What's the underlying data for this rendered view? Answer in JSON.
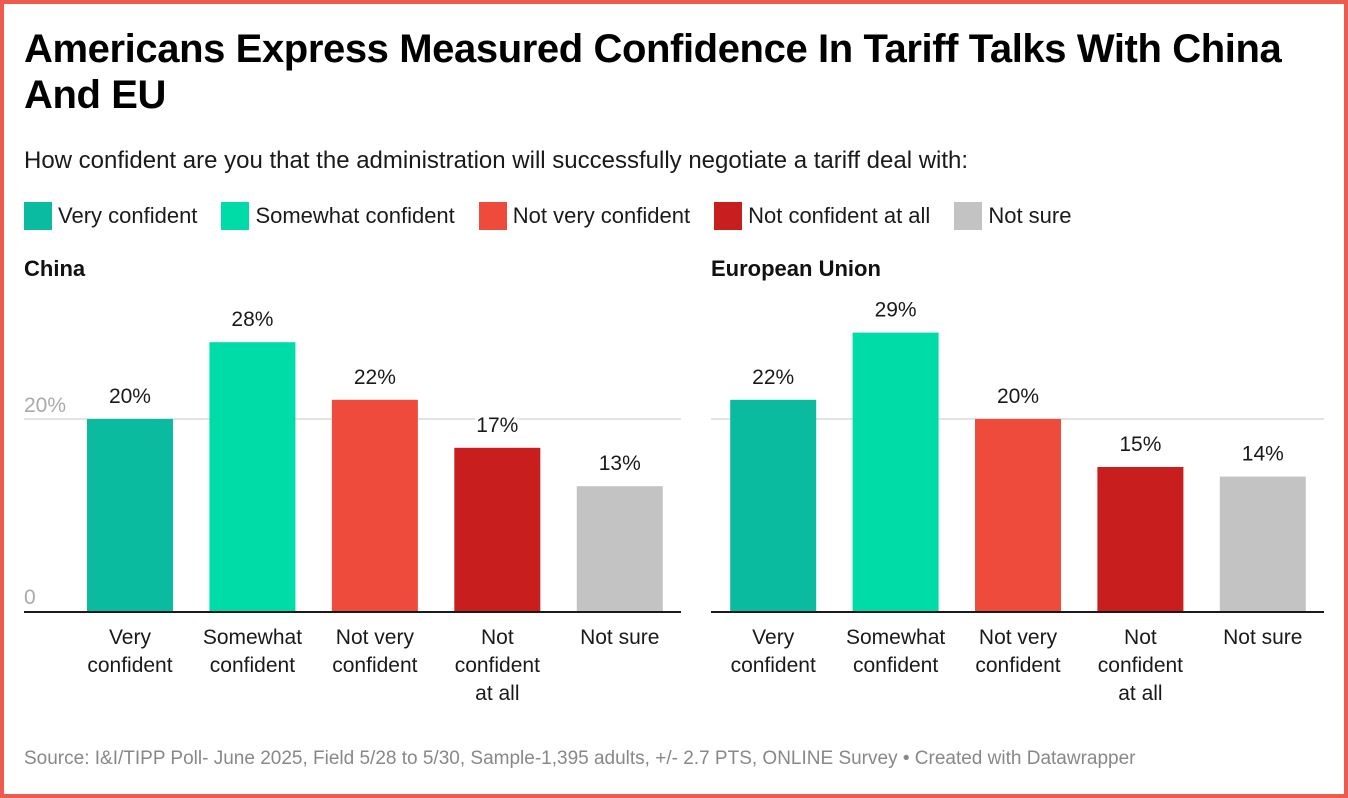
{
  "title": "Americans Express Measured Confidence In Tariff Talks With China And EU",
  "subtitle": "How confident are you that the administration will successfully negotiate a tariff deal with:",
  "legend": [
    {
      "label": "Very confident",
      "color": "#0BBBA0"
    },
    {
      "label": "Somewhat confident",
      "color": "#00DCA8"
    },
    {
      "label": "Not very confident",
      "color": "#EF4B3D"
    },
    {
      "label": "Not confident at all",
      "color": "#C81E1E"
    },
    {
      "label": "Not sure",
      "color": "#C3C3C3"
    }
  ],
  "footer": "Source: I&I/TIPP Poll- June 2025, Field 5/28 to 5/30, Sample-1,395 adults, +/- 2.7 PTS, ONLINE Survey • Created with Datawrapper",
  "chart_data": [
    {
      "type": "bar",
      "title": "China",
      "categories": [
        [
          "Very",
          "confident"
        ],
        [
          "Somewhat",
          "confident"
        ],
        [
          "Not very",
          "confident"
        ],
        [
          "Not",
          "confident",
          "at all"
        ],
        [
          "Not sure"
        ]
      ],
      "values": [
        20,
        28,
        22,
        17,
        13
      ],
      "value_labels": [
        "20%",
        "28%",
        "22%",
        "17%",
        "13%"
      ],
      "colors": [
        "#0BBBA0",
        "#00DCA8",
        "#EF4B3D",
        "#C81E1E",
        "#C3C3C3"
      ],
      "yticks": [
        {
          "value": 0,
          "label": "0"
        },
        {
          "value": 20,
          "label": "20%"
        }
      ],
      "ylim": [
        0,
        28
      ],
      "grid": true,
      "xlabel": "",
      "ylabel": ""
    },
    {
      "type": "bar",
      "title": "European Union",
      "categories": [
        [
          "Very",
          "confident"
        ],
        [
          "Somewhat",
          "confident"
        ],
        [
          "Not very",
          "confident"
        ],
        [
          "Not",
          "confident",
          "at all"
        ],
        [
          "Not sure"
        ]
      ],
      "values": [
        22,
        29,
        20,
        15,
        14
      ],
      "value_labels": [
        "22%",
        "29%",
        "20%",
        "15%",
        "14%"
      ],
      "colors": [
        "#0BBBA0",
        "#00DCA8",
        "#EF4B3D",
        "#C81E1E",
        "#C3C3C3"
      ],
      "yticks": [
        {
          "value": 0,
          "label": ""
        },
        {
          "value": 20,
          "label": ""
        }
      ],
      "ylim": [
        0,
        29
      ],
      "grid": true,
      "xlabel": "",
      "ylabel": ""
    }
  ]
}
